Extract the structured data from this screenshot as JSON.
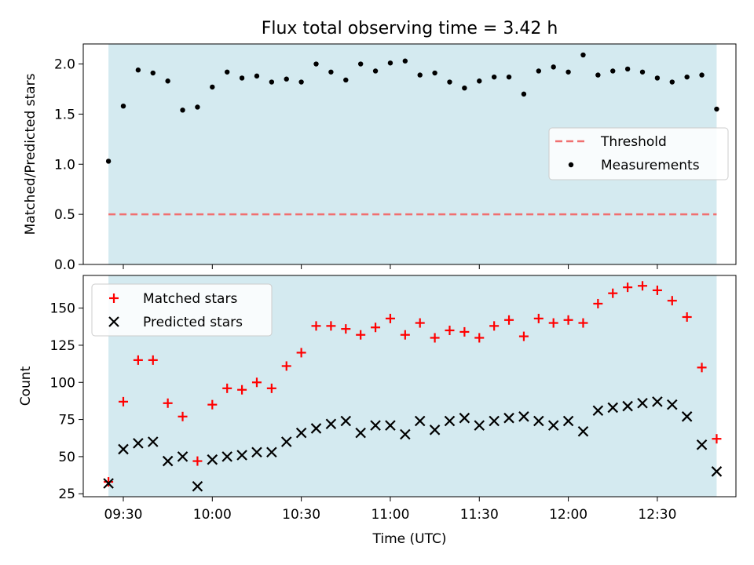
{
  "chart_data": [
    {
      "type": "scatter",
      "title": "Flux total observing time = 3.42 h",
      "xlabel": "",
      "ylabel": "Matched/Predicted stars",
      "ylim": [
        0,
        2.2
      ],
      "yticks": [
        "0.0",
        "0.5",
        "1.0",
        "1.5",
        "2.0"
      ],
      "ytick_values": [
        0,
        0.5,
        1.0,
        1.5,
        2.0
      ],
      "threshold": 0.5,
      "legend": {
        "position": "center-right",
        "entries": [
          "Threshold",
          "Measurements"
        ]
      },
      "series": [
        {
          "name": "Measurements",
          "values": [
            1.03,
            1.58,
            1.94,
            1.91,
            1.83,
            1.54,
            1.57,
            1.77,
            1.92,
            1.86,
            1.88,
            1.82,
            1.85,
            1.82,
            2.0,
            1.92,
            1.84,
            2.0,
            1.93,
            2.01,
            2.03,
            1.89,
            1.91,
            1.82,
            1.76,
            1.83,
            1.87,
            1.87,
            1.7,
            1.93,
            1.97,
            1.92,
            2.09,
            1.89,
            1.93,
            1.95,
            1.92,
            1.86,
            1.82,
            1.87,
            1.89,
            1.55
          ]
        }
      ]
    },
    {
      "type": "scatter",
      "title": "",
      "xlabel": "Time (UTC)",
      "ylabel": "Count",
      "ylim": [
        23,
        172
      ],
      "yticks": [
        "25",
        "50",
        "75",
        "100",
        "125",
        "150"
      ],
      "ytick_values": [
        25,
        50,
        75,
        100,
        125,
        150
      ],
      "legend": {
        "position": "top-left",
        "entries": [
          "Matched stars",
          "Predicted stars"
        ]
      },
      "series": [
        {
          "name": "Matched stars",
          "values": [
            33,
            87,
            115,
            115,
            86,
            77,
            47,
            85,
            96,
            95,
            100,
            96,
            111,
            120,
            138,
            138,
            136,
            132,
            137,
            143,
            132,
            140,
            130,
            135,
            134,
            130,
            138,
            142,
            131,
            143,
            140,
            142,
            140,
            153,
            160,
            164,
            165,
            162,
            155,
            144,
            110,
            62
          ]
        },
        {
          "name": "Predicted stars",
          "values": [
            32,
            55,
            59,
            60,
            47,
            50,
            30,
            48,
            50,
            51,
            53,
            53,
            60,
            66,
            69,
            72,
            74,
            66,
            71,
            71,
            65,
            74,
            68,
            74,
            76,
            71,
            74,
            76,
            77,
            74,
            71,
            74,
            67,
            81,
            83,
            84,
            86,
            87,
            85,
            77,
            58,
            40
          ]
        }
      ]
    }
  ],
  "time_axis": {
    "start_minutes": 565,
    "step_minutes": 5,
    "xlim_minutes": [
      556.5,
      776.5
    ],
    "tick_minutes": [
      570,
      600,
      630,
      660,
      690,
      720,
      750
    ],
    "tick_labels": [
      "09:30",
      "10:00",
      "10:30",
      "11:00",
      "11:30",
      "12:00",
      "12:30"
    ]
  },
  "colors": {
    "shade": "#d4eaf0",
    "threshold": "#f07070",
    "measurements": "#000000",
    "matched": "#ff0000",
    "predicted": "#000000"
  }
}
